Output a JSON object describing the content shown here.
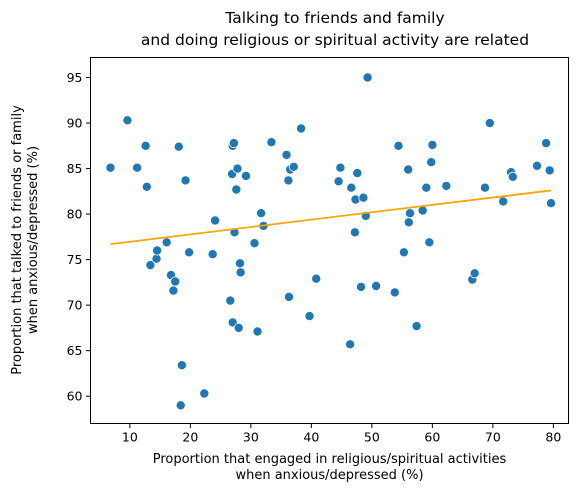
{
  "chart_data": {
    "type": "scatter",
    "title": [
      "Talking to friends and family",
      "and doing religious or spiritual activity are related"
    ],
    "xlabel": [
      "Proportion that engaged in religious/spiritual activities",
      "when anxious/depressed (%)"
    ],
    "ylabel": [
      "Proportion that talked to friends or family",
      "when anxious/depressed (%)"
    ],
    "xlim": [
      3.5,
      82.5
    ],
    "ylim": [
      57.0,
      97.2
    ],
    "xticks": [
      10,
      20,
      30,
      40,
      50,
      60,
      70,
      80
    ],
    "yticks": [
      60,
      65,
      70,
      75,
      80,
      85,
      90,
      95
    ],
    "grid": false,
    "colors": {
      "points": "#1f77b4",
      "trend": "#ffa500"
    },
    "points": [
      [
        6.8,
        85.1
      ],
      [
        9.6,
        90.3
      ],
      [
        11.2,
        85.1
      ],
      [
        12.6,
        87.5
      ],
      [
        12.8,
        83.0
      ],
      [
        13.4,
        74.4
      ],
      [
        14.4,
        75.1
      ],
      [
        14.5,
        76.0
      ],
      [
        16.1,
        76.9
      ],
      [
        16.8,
        73.3
      ],
      [
        17.2,
        71.6
      ],
      [
        17.5,
        72.6
      ],
      [
        18.1,
        87.4
      ],
      [
        18.4,
        59.0
      ],
      [
        18.6,
        63.4
      ],
      [
        19.2,
        83.7
      ],
      [
        19.8,
        75.8
      ],
      [
        22.3,
        60.3
      ],
      [
        23.7,
        75.6
      ],
      [
        24.1,
        79.3
      ],
      [
        26.6,
        70.5
      ],
      [
        26.9,
        84.4
      ],
      [
        27.0,
        87.5
      ],
      [
        27.0,
        68.1
      ],
      [
        27.2,
        87.8
      ],
      [
        27.3,
        78.0
      ],
      [
        27.6,
        82.7
      ],
      [
        27.8,
        85.0
      ],
      [
        28.0,
        67.5
      ],
      [
        28.2,
        74.6
      ],
      [
        28.3,
        73.6
      ],
      [
        29.2,
        84.2
      ],
      [
        30.6,
        76.8
      ],
      [
        31.1,
        67.1
      ],
      [
        31.7,
        80.1
      ],
      [
        32.1,
        78.7
      ],
      [
        33.4,
        87.9
      ],
      [
        35.9,
        86.5
      ],
      [
        36.2,
        83.7
      ],
      [
        36.3,
        70.9
      ],
      [
        36.5,
        84.9
      ],
      [
        37.1,
        85.2
      ],
      [
        38.3,
        89.4
      ],
      [
        39.7,
        68.8
      ],
      [
        40.8,
        72.9
      ],
      [
        44.5,
        83.6
      ],
      [
        44.8,
        85.1
      ],
      [
        46.4,
        65.7
      ],
      [
        46.6,
        82.9
      ],
      [
        47.2,
        78.0
      ],
      [
        47.3,
        81.6
      ],
      [
        47.6,
        84.5
      ],
      [
        48.2,
        72.0
      ],
      [
        48.6,
        81.8
      ],
      [
        49.0,
        79.8
      ],
      [
        49.3,
        95.0
      ],
      [
        50.7,
        72.1
      ],
      [
        53.8,
        71.4
      ],
      [
        54.4,
        87.5
      ],
      [
        55.3,
        75.8
      ],
      [
        56.0,
        84.9
      ],
      [
        56.1,
        79.1
      ],
      [
        56.3,
        80.1
      ],
      [
        57.4,
        67.7
      ],
      [
        58.4,
        80.4
      ],
      [
        59.0,
        82.9
      ],
      [
        59.5,
        76.9
      ],
      [
        59.8,
        85.7
      ],
      [
        60.0,
        87.6
      ],
      [
        62.3,
        83.1
      ],
      [
        66.6,
        72.8
      ],
      [
        67.0,
        73.5
      ],
      [
        68.7,
        82.9
      ],
      [
        69.5,
        90.0
      ],
      [
        71.7,
        81.4
      ],
      [
        73.0,
        84.6
      ],
      [
        73.3,
        84.1
      ],
      [
        77.3,
        85.3
      ],
      [
        78.8,
        87.8
      ],
      [
        79.4,
        84.8
      ],
      [
        79.6,
        81.2
      ]
    ],
    "trend_line": {
      "x": [
        6.8,
        79.6
      ],
      "y": [
        76.7,
        82.6
      ]
    }
  }
}
